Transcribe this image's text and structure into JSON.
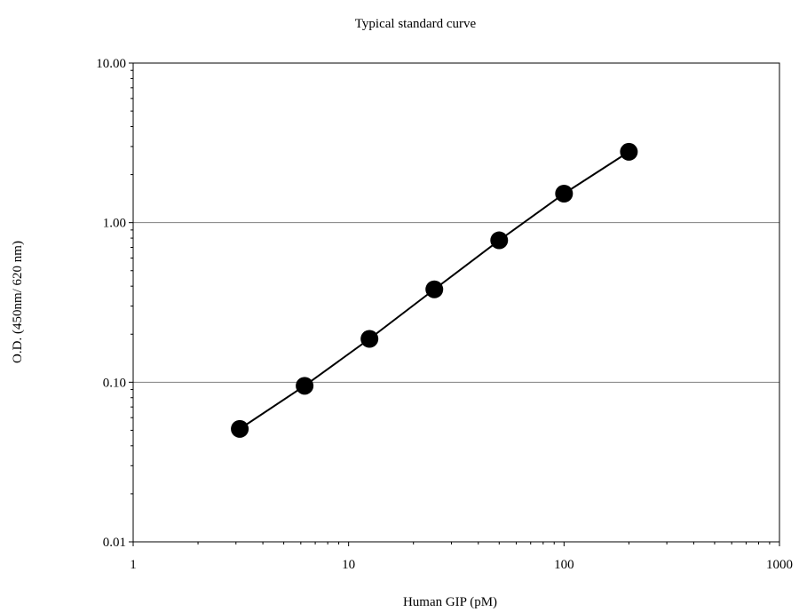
{
  "chart_data": {
    "type": "scatter",
    "title": "Typical standard curve",
    "xlabel": "Human GIP  (pM)",
    "ylabel": "O.D. (450nm/ 620 nm)",
    "x_scale": "log",
    "y_scale": "log",
    "xlim": [
      1,
      1000
    ],
    "ylim": [
      0.01,
      10
    ],
    "x_ticks": [
      1,
      10,
      100,
      1000
    ],
    "x_tick_labels": [
      "1",
      "10",
      "100",
      "1000"
    ],
    "y_ticks": [
      0.01,
      0.1,
      1,
      10
    ],
    "y_tick_labels": [
      "0.01",
      "0.10",
      "1.00",
      "10.00"
    ],
    "grid": "horizontal major lines",
    "legend": "none",
    "series": [
      {
        "x": [
          3.125,
          6.25,
          12.5,
          25,
          50,
          100,
          200
        ],
        "y": [
          0.051,
          0.095,
          0.187,
          0.382,
          0.775,
          1.52,
          2.78
        ],
        "marker": "filled circle",
        "line": "connected",
        "color": "#000000"
      }
    ]
  }
}
